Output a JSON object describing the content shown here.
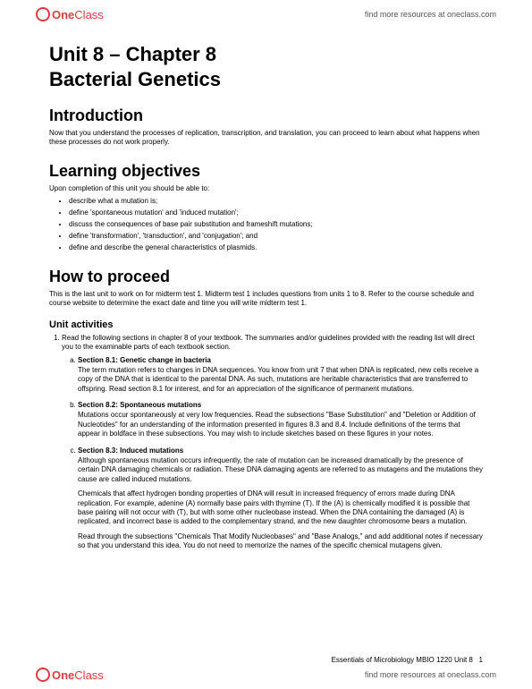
{
  "brand": {
    "name_part1": "One",
    "name_part2": "Class",
    "color": "#e03a3e"
  },
  "header": {
    "link_text": "find more resources at oneclass.com"
  },
  "title": {
    "line1": "Unit 8 – Chapter 8",
    "line2": "Bacterial Genetics"
  },
  "intro": {
    "heading": "Introduction",
    "text": "Now that you understand the processes of replication, transcription, and translation, you can proceed to learn about what happens when these processes do not work properly."
  },
  "objectives": {
    "heading": "Learning objectives",
    "lead": "Upon completion of this unit you should be able to:",
    "items": [
      "describe what a mutation is;",
      "define 'spontaneous mutation' and 'induced mutation';",
      "discuss the consequences of base pair substitution and frameshift mutations;",
      "define 'transformation', 'transduction', and 'conjugation'; and",
      "define and describe the general characteristics of plasmids."
    ]
  },
  "proceed": {
    "heading": "How to proceed",
    "text": "This is the last unit to work on for midterm test 1. Midterm test 1 includes questions from units 1 to 8. Refer to the course schedule and course website to determine the exact date and time you will write midterm test 1."
  },
  "activities": {
    "heading": "Unit activities",
    "item1_lead": "Read the following sections in chapter 8 of your textbook. The summaries and/or guidelines provided with the reading list will direct you to the examinable parts of each textbook section.",
    "sections": [
      {
        "title": "Section 8.1: Genetic change in bacteria",
        "body": "The term mutation refers to changes in DNA sequences. You know from unit 7 that when DNA is replicated, new cells receive a copy of the DNA that is identical to the parental DNA. As such, mutations are heritable characteristics that are transferred to offspring. Read section 8.1 for interest, and for an appreciation of the significance of permanent mutations."
      },
      {
        "title": "Section 8.2: Spontaneous mutations",
        "body": "Mutations occur spontaneously at very low frequencies. Read the subsections \"Base Substitution\" and \"Deletion or Addition of Nucleotides\" for an understanding of the information presented in figures 8.3 and 8.4. Include definitions of the terms that appear in boldface in these subsections. You may wish to include sketches based on these figures in your notes."
      },
      {
        "title": "Section 8.3: Induced mutations",
        "body": "Although spontaneous mutation occurs infrequently, the rate of mutation can be increased dramatically by the presence of certain DNA damaging chemicals or radiation. These DNA damaging agents are referred to as mutagens and the mutations they cause are called induced mutations.",
        "body2": "Chemicals that affect hydrogen bonding properties of DNA will result in increased frequency of errors made during DNA replication. For example, adenine (A) normally base pairs with thymine (T). If the (A) is chemically modified it is possible that base pairing will not occur with (T), but with some other nucleobase instead. When the DNA containing the damaged (A) is replicated, and incorrect base is added to the complementary strand, and the new daughter chromosome bears a mutation.",
        "body3": "Read through the subsections \"Chemicals That Modify Nucleobases\" and \"Base Analogs,\" and add additional notes if necessary so that you understand this idea. You do not need to memorize the names of the specific chemical mutagens given."
      }
    ]
  },
  "footer": {
    "course_info": "Essentials of Microbiology    MBIO 1220   Unit 8",
    "page_num": "1",
    "link_text": "find more resources at oneclass.com"
  }
}
